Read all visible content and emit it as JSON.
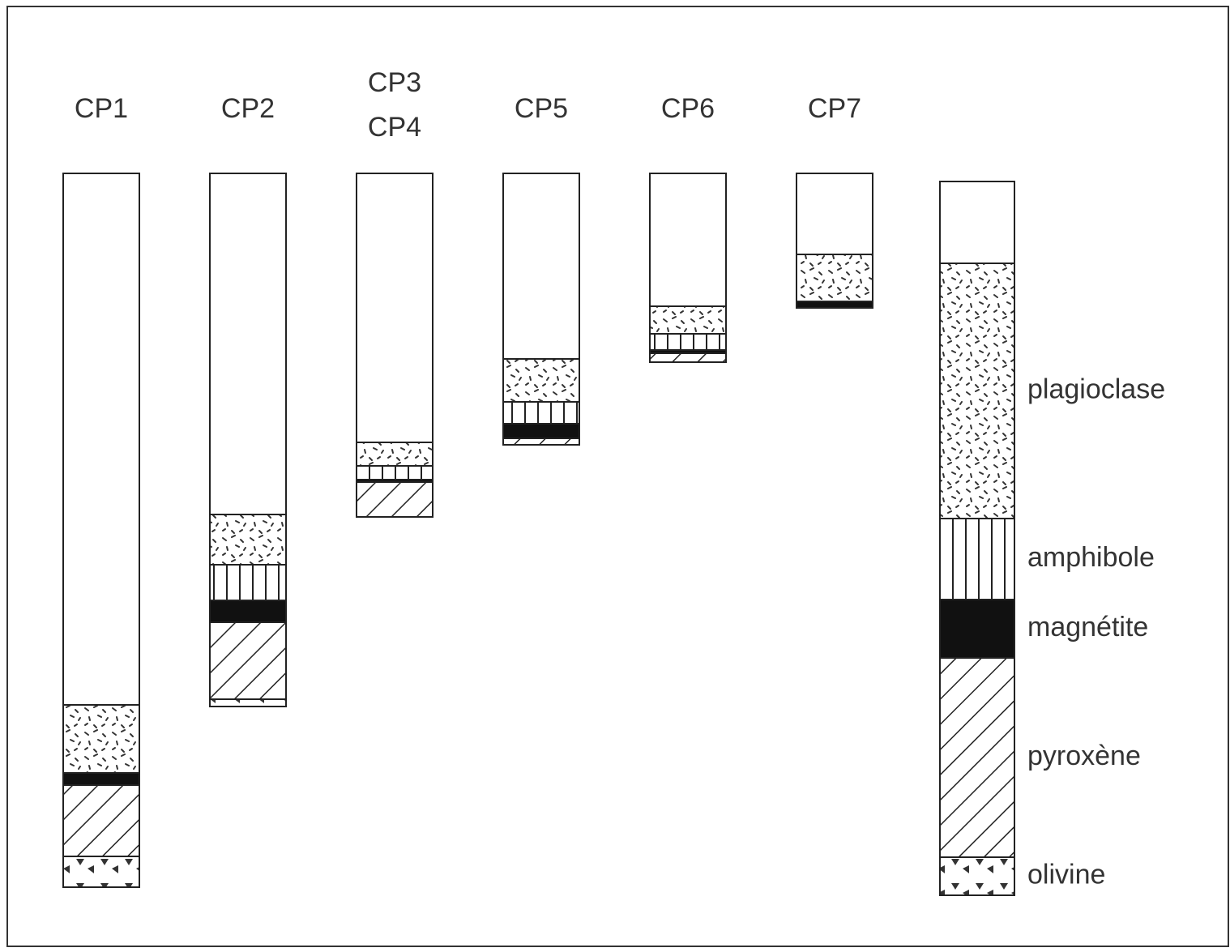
{
  "chart_data": {
    "type": "bar",
    "stacked": true,
    "categories": [
      "CP1",
      "CP2",
      [
        "CP3",
        "CP4"
      ],
      "CP5",
      "CP6",
      "CP7"
    ],
    "series": [
      {
        "color": "#ffffff",
        "pattern": "plain",
        "values": [
          656,
          421,
          332,
          229,
          164,
          100
        ]
      },
      {
        "name": "plagioclase",
        "color": "#222222",
        "pattern": "speckle",
        "values": [
          84,
          62,
          29,
          53,
          34,
          58
        ]
      },
      {
        "name": "amphibole",
        "color": "#222222",
        "pattern": "vlines",
        "values": [
          0,
          44,
          17,
          27,
          20,
          0
        ]
      },
      {
        "name": "magnétite",
        "color": "#111111",
        "pattern": "solid",
        "values": [
          15,
          27,
          3,
          18,
          4,
          8
        ]
      },
      {
        "name": "pyroxène",
        "color": "#222222",
        "pattern": "hatch",
        "values": [
          88,
          95,
          43,
          8,
          11,
          0
        ]
      },
      {
        "name": "olivine",
        "color": "#222222",
        "pattern": "triangles",
        "values": [
          38,
          9,
          0,
          0,
          0,
          0
        ]
      }
    ]
  }
}
